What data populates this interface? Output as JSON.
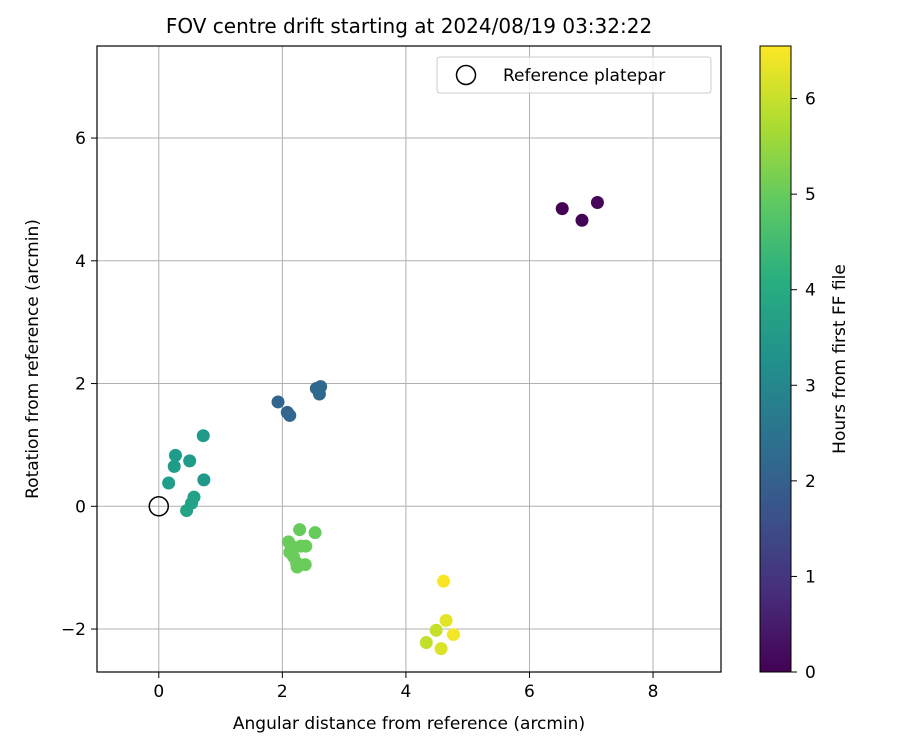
{
  "chart_data": {
    "type": "scatter",
    "title": "FOV centre drift starting at 2024/08/19 03:32:22",
    "xlabel": "Angular distance from reference (arcmin)",
    "ylabel": "Rotation from reference (arcmin)",
    "xlim": [
      -1.0,
      9.1
    ],
    "ylim": [
      -2.7,
      7.5
    ],
    "xticks": [
      0,
      2,
      4,
      6,
      8
    ],
    "xtick_labels": [
      "0",
      "2",
      "4",
      "6",
      "8"
    ],
    "yticks": [
      -2,
      0,
      2,
      4,
      6
    ],
    "ytick_labels": [
      "−2",
      "0",
      "2",
      "4",
      "6"
    ],
    "grid": true,
    "legend_position": "top-right",
    "reference": {
      "label": "Reference platepar",
      "x": 0.0,
      "y": 0.0
    },
    "colorbar": {
      "label": "Hours from first FF file",
      "range": [
        0,
        6.55
      ],
      "ticks": [
        0,
        1,
        2,
        3,
        4,
        5,
        6
      ],
      "colormap": "viridis"
    },
    "points": [
      {
        "x": 6.53,
        "y": 4.85,
        "hours": 0.0
      },
      {
        "x": 6.85,
        "y": 4.66,
        "hours": 0.05
      },
      {
        "x": 7.1,
        "y": 4.95,
        "hours": 0.1
      },
      {
        "x": 1.93,
        "y": 1.7,
        "hours": 2.1
      },
      {
        "x": 2.08,
        "y": 1.53,
        "hours": 2.12
      },
      {
        "x": 2.12,
        "y": 1.48,
        "hours": 2.14
      },
      {
        "x": 2.55,
        "y": 1.92,
        "hours": 2.2
      },
      {
        "x": 2.6,
        "y": 1.83,
        "hours": 2.2
      },
      {
        "x": 2.62,
        "y": 1.95,
        "hours": 2.22
      },
      {
        "x": 0.72,
        "y": 1.15,
        "hours": 3.5
      },
      {
        "x": 0.27,
        "y": 0.83,
        "hours": 3.6
      },
      {
        "x": 0.25,
        "y": 0.65,
        "hours": 3.6
      },
      {
        "x": 0.5,
        "y": 0.74,
        "hours": 3.55
      },
      {
        "x": 0.16,
        "y": 0.38,
        "hours": 3.65
      },
      {
        "x": 0.73,
        "y": 0.43,
        "hours": 3.5
      },
      {
        "x": 0.57,
        "y": 0.15,
        "hours": 3.75
      },
      {
        "x": 0.53,
        "y": 0.05,
        "hours": 3.75
      },
      {
        "x": 0.45,
        "y": -0.07,
        "hours": 3.8
      },
      {
        "x": 2.28,
        "y": -0.38,
        "hours": 5.0
      },
      {
        "x": 2.53,
        "y": -0.43,
        "hours": 5.0
      },
      {
        "x": 2.1,
        "y": -0.58,
        "hours": 5.05
      },
      {
        "x": 2.15,
        "y": -0.65,
        "hours": 5.05
      },
      {
        "x": 2.3,
        "y": -0.65,
        "hours": 5.05
      },
      {
        "x": 2.38,
        "y": -0.65,
        "hours": 5.05
      },
      {
        "x": 2.12,
        "y": -0.75,
        "hours": 5.05
      },
      {
        "x": 2.18,
        "y": -0.82,
        "hours": 5.05
      },
      {
        "x": 2.23,
        "y": -0.92,
        "hours": 5.05
      },
      {
        "x": 2.37,
        "y": -0.95,
        "hours": 5.05
      },
      {
        "x": 2.24,
        "y": -0.99,
        "hours": 5.05
      },
      {
        "x": 4.61,
        "y": -1.22,
        "hours": 6.5
      },
      {
        "x": 4.65,
        "y": -1.86,
        "hours": 6.3
      },
      {
        "x": 4.49,
        "y": -2.02,
        "hours": 6.0
      },
      {
        "x": 4.77,
        "y": -2.09,
        "hours": 6.45
      },
      {
        "x": 4.33,
        "y": -2.22,
        "hours": 5.95
      },
      {
        "x": 4.57,
        "y": -2.32,
        "hours": 6.2
      }
    ]
  }
}
